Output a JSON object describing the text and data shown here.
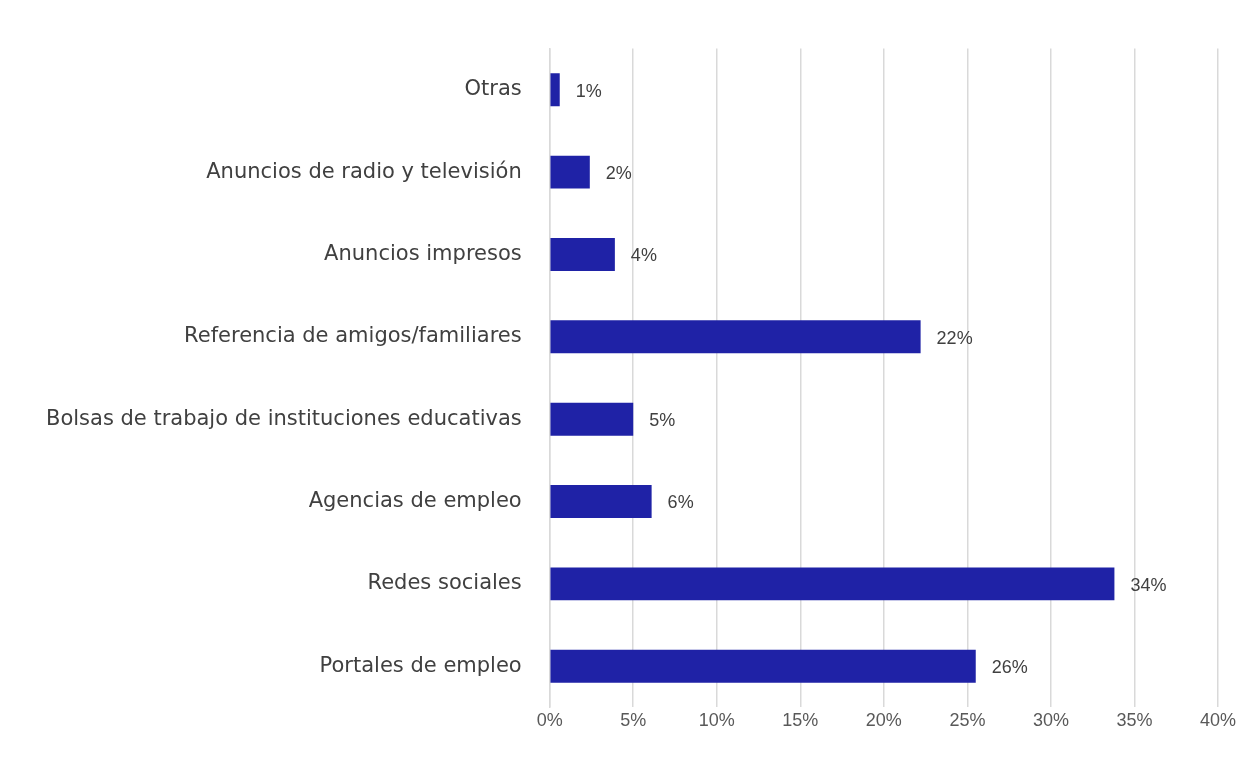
{
  "chart_data": {
    "type": "bar",
    "orientation": "horizontal",
    "categories": [
      "Otras",
      "Anuncios de radio y televisión",
      "Anuncios impresos",
      "Referencia de amigos/familiares",
      "Bolsas de trabajo de instituciones educativas",
      "Agencias de empleo",
      "Redes sociales",
      "Portales de empleo"
    ],
    "values": [
      0.6,
      2.4,
      3.9,
      22.2,
      5.0,
      6.1,
      33.8,
      25.5
    ],
    "value_labels": [
      "1%",
      "2%",
      "4%",
      "22%",
      "5%",
      "6%",
      "34%",
      "26%"
    ],
    "color": "#1f22a6",
    "xlim": [
      0,
      40
    ],
    "xticks": [
      {
        "value": 0,
        "label": "0%"
      },
      {
        "value": 5,
        "label": "5%"
      },
      {
        "value": 10,
        "label": "10%"
      },
      {
        "value": 15,
        "label": "15%"
      },
      {
        "value": 20,
        "label": "20%"
      },
      {
        "value": 25,
        "label": "25%"
      },
      {
        "value": 30,
        "label": "30%"
      },
      {
        "value": 35,
        "label": "35%"
      },
      {
        "value": 40,
        "label": "40%"
      }
    ],
    "grid": "x"
  }
}
